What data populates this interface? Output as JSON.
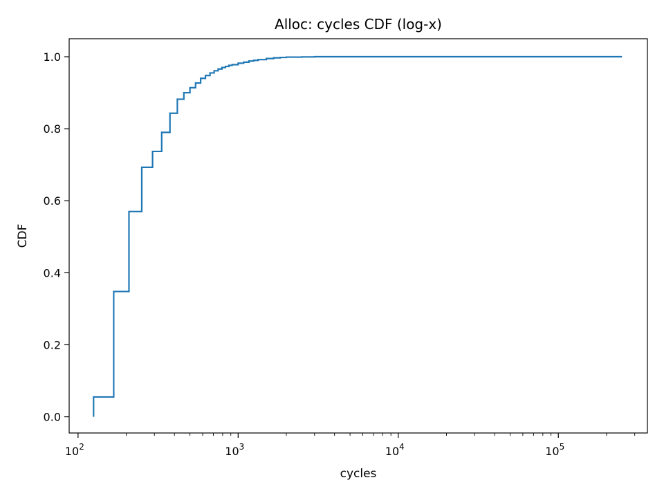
{
  "chart_data": {
    "type": "line",
    "title": "Alloc: cycles CDF (log-x)",
    "xlabel": "cycles",
    "ylabel": "CDF",
    "x_scale": "log",
    "xlim": [
      88,
      360000
    ],
    "ylim": [
      -0.045,
      1.05
    ],
    "x_ticks": [
      {
        "value": 100,
        "base": "10",
        "exp": "2"
      },
      {
        "value": 1000,
        "base": "10",
        "exp": "3"
      },
      {
        "value": 10000,
        "base": "10",
        "exp": "4"
      },
      {
        "value": 100000,
        "base": "10",
        "exp": "5"
      }
    ],
    "y_ticks": [
      0.0,
      0.2,
      0.4,
      0.6,
      0.8,
      1.0
    ],
    "y_tick_labels": [
      "0.0",
      "0.2",
      "0.4",
      "0.6",
      "0.8",
      "1.0"
    ],
    "grid": false,
    "legend": "none",
    "line_color": "#1f77b4",
    "series": [
      {
        "x": [
          125,
          167,
          208,
          250,
          292,
          333,
          375,
          417,
          458,
          500,
          542,
          583,
          625,
          667,
          708,
          750,
          792,
          833,
          875,
          917,
          1000,
          1083,
          1167,
          1250,
          1333,
          1500,
          1667,
          1833,
          2000,
          2500,
          3000,
          250000
        ],
        "y": [
          0.055,
          0.348,
          0.57,
          0.693,
          0.737,
          0.79,
          0.843,
          0.882,
          0.9,
          0.914,
          0.927,
          0.94,
          0.948,
          0.955,
          0.961,
          0.966,
          0.97,
          0.973,
          0.976,
          0.978,
          0.982,
          0.985,
          0.988,
          0.99,
          0.992,
          0.995,
          0.997,
          0.998,
          0.999,
          0.9995,
          1.0,
          1.0
        ],
        "start_y": 0.0
      }
    ]
  }
}
